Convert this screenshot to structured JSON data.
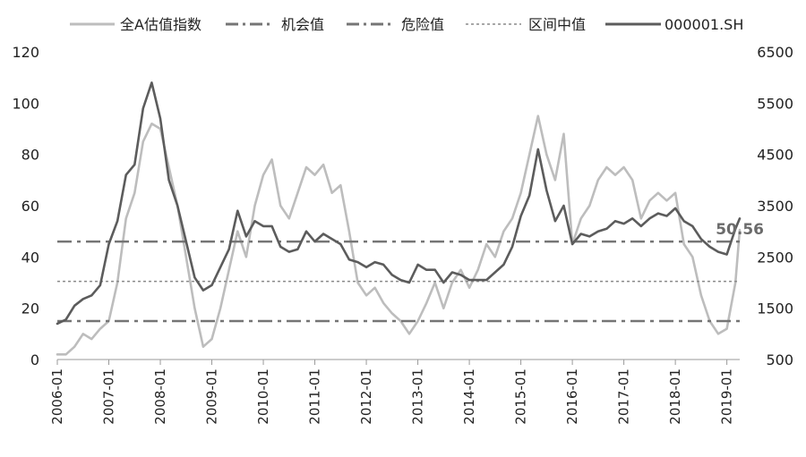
{
  "chart_data": {
    "type": "line",
    "legend_position": "top",
    "grid": false,
    "x": [
      "2006-01",
      "2007-01",
      "2008-01",
      "2009-01",
      "2010-01",
      "2011-01",
      "2012-01",
      "2013-01",
      "2014-01",
      "2015-01",
      "2016-01",
      "2017-01",
      "2018-01",
      "2019-01"
    ],
    "x_tick_labels": [
      "2006-01",
      "2007-01",
      "2008-01",
      "2009-01",
      "2010-01",
      "2011-01",
      "2012-01",
      "2013-01",
      "2014-01",
      "2015-01",
      "2016-01",
      "2017-01",
      "2018-01",
      "2019-01"
    ],
    "xlim": [
      "2006-01",
      "2019-04"
    ],
    "y_left": {
      "lim": [
        0,
        120
      ],
      "ticks": [
        "0",
        "20",
        "40",
        "60",
        "80",
        "100",
        "120"
      ]
    },
    "y_right": {
      "lim": [
        500,
        6500
      ],
      "ticks": [
        "500",
        "1500",
        "2500",
        "3500",
        "4500",
        "5500",
        "6500"
      ]
    },
    "series": [
      {
        "name": "全A估值指数",
        "axis": "left",
        "color": "#bdbdbd",
        "style": "solid",
        "points": [
          [
            "2006-01",
            2
          ],
          [
            "2006-03",
            2
          ],
          [
            "2006-05",
            5
          ],
          [
            "2006-07",
            10
          ],
          [
            "2006-09",
            8
          ],
          [
            "2006-11",
            12
          ],
          [
            "2007-01",
            15
          ],
          [
            "2007-03",
            30
          ],
          [
            "2007-05",
            55
          ],
          [
            "2007-07",
            65
          ],
          [
            "2007-09",
            85
          ],
          [
            "2007-11",
            92
          ],
          [
            "2008-01",
            90
          ],
          [
            "2008-03",
            75
          ],
          [
            "2008-05",
            60
          ],
          [
            "2008-07",
            40
          ],
          [
            "2008-09",
            20
          ],
          [
            "2008-11",
            5
          ],
          [
            "2009-01",
            8
          ],
          [
            "2009-03",
            20
          ],
          [
            "2009-05",
            35
          ],
          [
            "2009-07",
            50
          ],
          [
            "2009-09",
            40
          ],
          [
            "2009-11",
            60
          ],
          [
            "2010-01",
            72
          ],
          [
            "2010-03",
            78
          ],
          [
            "2010-05",
            60
          ],
          [
            "2010-07",
            55
          ],
          [
            "2010-09",
            65
          ],
          [
            "2010-11",
            75
          ],
          [
            "2011-01",
            72
          ],
          [
            "2011-03",
            76
          ],
          [
            "2011-05",
            65
          ],
          [
            "2011-07",
            68
          ],
          [
            "2011-09",
            50
          ],
          [
            "2011-11",
            30
          ],
          [
            "2012-01",
            25
          ],
          [
            "2012-03",
            28
          ],
          [
            "2012-05",
            22
          ],
          [
            "2012-07",
            18
          ],
          [
            "2012-09",
            15
          ],
          [
            "2012-11",
            10
          ],
          [
            "2013-01",
            15
          ],
          [
            "2013-03",
            22
          ],
          [
            "2013-05",
            30
          ],
          [
            "2013-07",
            20
          ],
          [
            "2013-09",
            30
          ],
          [
            "2013-11",
            35
          ],
          [
            "2014-01",
            28
          ],
          [
            "2014-03",
            35
          ],
          [
            "2014-05",
            45
          ],
          [
            "2014-07",
            40
          ],
          [
            "2014-09",
            50
          ],
          [
            "2014-11",
            55
          ],
          [
            "2015-01",
            65
          ],
          [
            "2015-03",
            80
          ],
          [
            "2015-05",
            95
          ],
          [
            "2015-07",
            80
          ],
          [
            "2015-09",
            70
          ],
          [
            "2015-11",
            88
          ],
          [
            "2016-01",
            45
          ],
          [
            "2016-03",
            55
          ],
          [
            "2016-05",
            60
          ],
          [
            "2016-07",
            70
          ],
          [
            "2016-09",
            75
          ],
          [
            "2016-11",
            72
          ],
          [
            "2017-01",
            75
          ],
          [
            "2017-03",
            70
          ],
          [
            "2017-05",
            55
          ],
          [
            "2017-07",
            62
          ],
          [
            "2017-09",
            65
          ],
          [
            "2017-11",
            62
          ],
          [
            "2018-01",
            65
          ],
          [
            "2018-03",
            45
          ],
          [
            "2018-05",
            40
          ],
          [
            "2018-07",
            25
          ],
          [
            "2018-09",
            15
          ],
          [
            "2018-11",
            10
          ],
          [
            "2019-01",
            12
          ],
          [
            "2019-03",
            30
          ],
          [
            "2019-04",
            50.56
          ]
        ]
      },
      {
        "name": "机会值",
        "axis": "left",
        "color": "#757575",
        "style": "dashdot",
        "value": 15
      },
      {
        "name": "危险值",
        "axis": "left",
        "color": "#757575",
        "style": "dashdot",
        "value": 46
      },
      {
        "name": "区间中值",
        "axis": "left",
        "color": "#8a8a8a",
        "style": "dotted",
        "value": 30.5
      },
      {
        "name": "000001.SH",
        "axis": "right",
        "color": "#5c5c5c",
        "style": "solid",
        "points": [
          [
            "2006-01",
            1200
          ],
          [
            "2006-03",
            1280
          ],
          [
            "2006-05",
            1550
          ],
          [
            "2006-07",
            1680
          ],
          [
            "2006-09",
            1750
          ],
          [
            "2006-11",
            1950
          ],
          [
            "2007-01",
            2750
          ],
          [
            "2007-03",
            3200
          ],
          [
            "2007-05",
            4100
          ],
          [
            "2007-07",
            4300
          ],
          [
            "2007-09",
            5400
          ],
          [
            "2007-11",
            5900
          ],
          [
            "2008-01",
            5200
          ],
          [
            "2008-03",
            4000
          ],
          [
            "2008-05",
            3500
          ],
          [
            "2008-07",
            2800
          ],
          [
            "2008-09",
            2100
          ],
          [
            "2008-11",
            1850
          ],
          [
            "2009-01",
            1950
          ],
          [
            "2009-03",
            2300
          ],
          [
            "2009-05",
            2650
          ],
          [
            "2009-07",
            3400
          ],
          [
            "2009-09",
            2900
          ],
          [
            "2009-11",
            3200
          ],
          [
            "2010-01",
            3100
          ],
          [
            "2010-03",
            3100
          ],
          [
            "2010-05",
            2700
          ],
          [
            "2010-07",
            2600
          ],
          [
            "2010-09",
            2650
          ],
          [
            "2010-11",
            3000
          ],
          [
            "2011-01",
            2800
          ],
          [
            "2011-03",
            2950
          ],
          [
            "2011-05",
            2850
          ],
          [
            "2011-07",
            2750
          ],
          [
            "2011-09",
            2450
          ],
          [
            "2011-11",
            2400
          ],
          [
            "2012-01",
            2300
          ],
          [
            "2012-03",
            2400
          ],
          [
            "2012-05",
            2350
          ],
          [
            "2012-07",
            2150
          ],
          [
            "2012-09",
            2050
          ],
          [
            "2012-11",
            2000
          ],
          [
            "2013-01",
            2350
          ],
          [
            "2013-03",
            2250
          ],
          [
            "2013-05",
            2250
          ],
          [
            "2013-07",
            2000
          ],
          [
            "2013-09",
            2200
          ],
          [
            "2013-11",
            2150
          ],
          [
            "2014-01",
            2050
          ],
          [
            "2014-03",
            2050
          ],
          [
            "2014-05",
            2050
          ],
          [
            "2014-07",
            2200
          ],
          [
            "2014-09",
            2350
          ],
          [
            "2014-11",
            2700
          ],
          [
            "2015-01",
            3300
          ],
          [
            "2015-03",
            3700
          ],
          [
            "2015-05",
            4600
          ],
          [
            "2015-07",
            3800
          ],
          [
            "2015-09",
            3200
          ],
          [
            "2015-11",
            3500
          ],
          [
            "2016-01",
            2750
          ],
          [
            "2016-03",
            2950
          ],
          [
            "2016-05",
            2900
          ],
          [
            "2016-07",
            3000
          ],
          [
            "2016-09",
            3050
          ],
          [
            "2016-11",
            3200
          ],
          [
            "2017-01",
            3150
          ],
          [
            "2017-03",
            3250
          ],
          [
            "2017-05",
            3100
          ],
          [
            "2017-07",
            3250
          ],
          [
            "2017-09",
            3350
          ],
          [
            "2017-11",
            3300
          ],
          [
            "2018-01",
            3450
          ],
          [
            "2018-03",
            3200
          ],
          [
            "2018-05",
            3100
          ],
          [
            "2018-07",
            2850
          ],
          [
            "2018-09",
            2700
          ],
          [
            "2018-11",
            2600
          ],
          [
            "2019-01",
            2550
          ],
          [
            "2019-03",
            3050
          ],
          [
            "2019-04",
            3250
          ]
        ]
      }
    ],
    "annotations": [
      {
        "text": "50.56",
        "x": "2019-04",
        "y": 50.56,
        "axis": "right"
      }
    ]
  }
}
